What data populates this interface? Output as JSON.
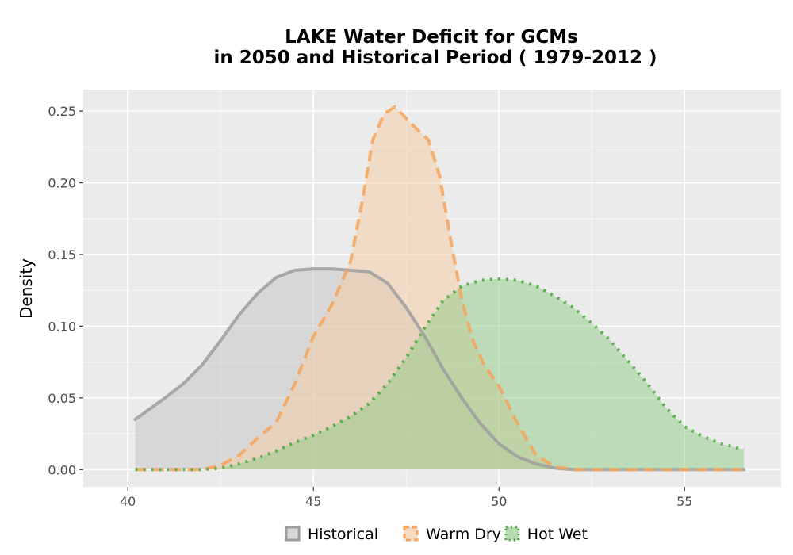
{
  "chart_data": {
    "type": "area",
    "title_line1": "LAKE  Water Deficit for GCMs",
    "title_line2": "in 2050 and Historical Period ( 1979-2012 )",
    "xlabel": "",
    "ylabel": "Density",
    "xlim": [
      38.8,
      57.6
    ],
    "ylim": [
      -0.012,
      0.265
    ],
    "x_ticks": [
      40,
      45,
      50,
      55
    ],
    "x_tick_labels": [
      "40",
      "45",
      "50",
      "55"
    ],
    "y_ticks": [
      0.0,
      0.05,
      0.1,
      0.15,
      0.2,
      0.25
    ],
    "y_tick_labels": [
      "0.00",
      "0.05",
      "0.10",
      "0.15",
      "0.20",
      "0.25"
    ],
    "grid": true,
    "legend_position": "bottom",
    "series": [
      {
        "name": "Historical",
        "line_color": "#9e9e9e",
        "fill_color": "#c4c4c4",
        "line_style": "solid",
        "x": [
          40.2,
          41.0,
          41.5,
          42.0,
          42.5,
          43.0,
          43.5,
          44.0,
          44.5,
          45.0,
          45.5,
          46.0,
          46.5,
          47.0,
          47.5,
          48.0,
          48.5,
          49.0,
          49.5,
          50.0,
          50.5,
          51.0,
          51.5,
          52.0,
          53.0,
          54.0,
          55.0,
          56.0,
          56.6
        ],
        "y": [
          0.035,
          0.05,
          0.06,
          0.073,
          0.09,
          0.108,
          0.123,
          0.134,
          0.139,
          0.14,
          0.14,
          0.139,
          0.138,
          0.13,
          0.113,
          0.093,
          0.07,
          0.05,
          0.032,
          0.018,
          0.009,
          0.004,
          0.001,
          0.0,
          0.0,
          0.0,
          0.0,
          0.0,
          0.0
        ]
      },
      {
        "name": "Warm Dry",
        "line_color": "#f5a55c",
        "fill_color": "#f6cba3",
        "line_style": "dashed",
        "x": [
          40.2,
          42.0,
          42.5,
          43.0,
          43.5,
          44.0,
          44.5,
          45.0,
          45.5,
          46.0,
          46.3,
          46.6,
          46.9,
          47.2,
          47.5,
          47.8,
          48.1,
          48.4,
          48.7,
          49.0,
          49.3,
          49.6,
          50.0,
          50.5,
          51.0,
          51.5,
          52.0,
          53.0,
          54.0,
          55.0,
          56.0,
          56.6
        ],
        "y": [
          0.0,
          0.0,
          0.003,
          0.01,
          0.022,
          0.033,
          0.06,
          0.093,
          0.115,
          0.145,
          0.185,
          0.23,
          0.248,
          0.253,
          0.245,
          0.237,
          0.23,
          0.205,
          0.16,
          0.118,
          0.09,
          0.073,
          0.058,
          0.032,
          0.01,
          0.002,
          0.0,
          0.0,
          0.0,
          0.0,
          0.0,
          0.0
        ]
      },
      {
        "name": "Hot Wet",
        "line_color": "#4aa83c",
        "fill_color": "#8fcc86",
        "line_style": "dotted",
        "x": [
          40.2,
          41.0,
          42.0,
          42.5,
          43.0,
          43.5,
          44.0,
          44.5,
          45.0,
          45.5,
          46.0,
          46.5,
          47.0,
          47.5,
          48.0,
          48.5,
          49.0,
          49.5,
          50.0,
          50.5,
          51.0,
          51.5,
          52.0,
          52.5,
          53.0,
          53.5,
          54.0,
          54.5,
          55.0,
          55.5,
          56.0,
          56.6
        ],
        "y": [
          0.0,
          0.0,
          0.0,
          0.001,
          0.004,
          0.008,
          0.013,
          0.019,
          0.024,
          0.03,
          0.037,
          0.046,
          0.06,
          0.078,
          0.099,
          0.118,
          0.128,
          0.132,
          0.133,
          0.132,
          0.128,
          0.121,
          0.113,
          0.102,
          0.09,
          0.075,
          0.06,
          0.043,
          0.03,
          0.023,
          0.018,
          0.014
        ]
      }
    ]
  }
}
